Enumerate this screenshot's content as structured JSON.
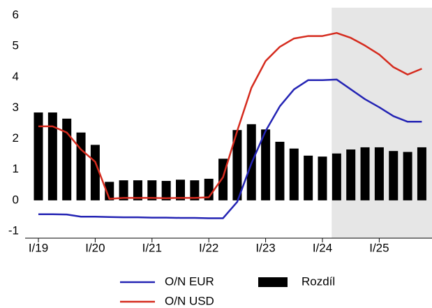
{
  "chart_data": {
    "type": "bar-line",
    "categories": [
      "I/19",
      null,
      null,
      null,
      "I/20",
      null,
      null,
      null,
      "I/21",
      null,
      null,
      null,
      "I/22",
      null,
      null,
      null,
      "I/23",
      null,
      null,
      null,
      "I/24",
      null,
      null,
      null,
      "I/25",
      null,
      null,
      null
    ],
    "series": [
      {
        "name": "O/N EUR",
        "mark": "line",
        "color": "#2424b4",
        "values": [
          -0.45,
          -0.45,
          -0.46,
          -0.53,
          -0.53,
          -0.54,
          -0.55,
          -0.55,
          -0.56,
          -0.56,
          -0.57,
          -0.57,
          -0.58,
          -0.58,
          -0.05,
          1.2,
          2.25,
          3.05,
          3.6,
          3.9,
          3.9,
          3.92,
          3.6,
          3.28,
          3.02,
          2.73,
          2.55,
          2.55
        ]
      },
      {
        "name": "O/N USD",
        "mark": "line",
        "color": "#d52b1e",
        "values": [
          2.4,
          2.4,
          2.2,
          1.65,
          1.25,
          0.05,
          0.08,
          0.08,
          0.08,
          0.07,
          0.08,
          0.08,
          0.1,
          0.75,
          2.25,
          3.65,
          4.52,
          4.98,
          5.25,
          5.33,
          5.33,
          5.43,
          5.27,
          5.02,
          4.73,
          4.32,
          4.08,
          4.27
        ]
      },
      {
        "name": "Rozdíl",
        "mark": "bar",
        "color": "#000000",
        "values": [
          2.85,
          2.85,
          2.65,
          2.2,
          1.8,
          0.6,
          0.65,
          0.65,
          0.65,
          0.63,
          0.67,
          0.65,
          0.7,
          1.35,
          2.28,
          2.47,
          2.3,
          1.9,
          1.68,
          1.45,
          1.42,
          1.52,
          1.65,
          1.72,
          1.72,
          1.6,
          1.57,
          1.72
        ]
      }
    ],
    "ylim": [
      -1,
      6
    ],
    "yticks": [
      -1,
      0,
      1,
      2,
      3,
      4,
      5,
      6
    ],
    "shade_start": 21,
    "shade_color": "#e6e6e6",
    "grid": false
  }
}
